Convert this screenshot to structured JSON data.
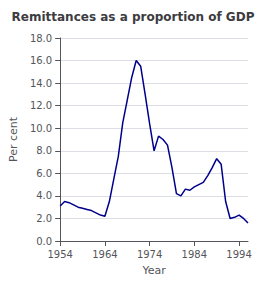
{
  "chart_data": {
    "type": "line",
    "title": "Remittances as a proportion of GDP",
    "xlabel": "Year",
    "ylabel": "Per cent",
    "x": [
      1954,
      1955,
      1956,
      1957,
      1958,
      1959,
      1960,
      1961,
      1962,
      1963,
      1964,
      1965,
      1966,
      1967,
      1968,
      1969,
      1970,
      1971,
      1972,
      1973,
      1974,
      1975,
      1976,
      1977,
      1978,
      1979,
      1980,
      1981,
      1982,
      1983,
      1984,
      1985,
      1986,
      1987,
      1988,
      1989,
      1990,
      1991,
      1992,
      1993,
      1994,
      1995,
      1996
    ],
    "values": [
      3.1,
      3.5,
      3.4,
      3.2,
      3.0,
      2.9,
      2.8,
      2.7,
      2.5,
      2.3,
      2.2,
      3.5,
      5.5,
      7.5,
      10.5,
      12.5,
      14.5,
      16.0,
      15.5,
      13.0,
      10.4,
      8.0,
      9.3,
      9.0,
      8.5,
      6.5,
      4.2,
      4.0,
      4.6,
      4.5,
      4.8,
      5.0,
      5.2,
      5.8,
      6.5,
      7.3,
      6.8,
      3.5,
      2.0,
      2.1,
      2.3,
      2.0,
      1.6
    ],
    "color": "#00008B",
    "xlim": [
      1954,
      1996
    ],
    "ylim": [
      0.0,
      18.0
    ],
    "xticks": [
      1954,
      1964,
      1974,
      1984,
      1994
    ],
    "yticks": [
      {
        "value": 0,
        "label": "0.0"
      },
      {
        "value": 2,
        "label": "2.0"
      },
      {
        "value": 4,
        "label": "4.0"
      },
      {
        "value": 6,
        "label": "6.0"
      },
      {
        "value": 8,
        "label": "8.0"
      },
      {
        "value": 10,
        "label": "10.0"
      },
      {
        "value": 12,
        "label": "12.0"
      },
      {
        "value": 14,
        "label": "14.0"
      },
      {
        "value": 16,
        "label": "16.0"
      },
      {
        "value": 18,
        "label": "18.0"
      }
    ],
    "grid": true
  }
}
